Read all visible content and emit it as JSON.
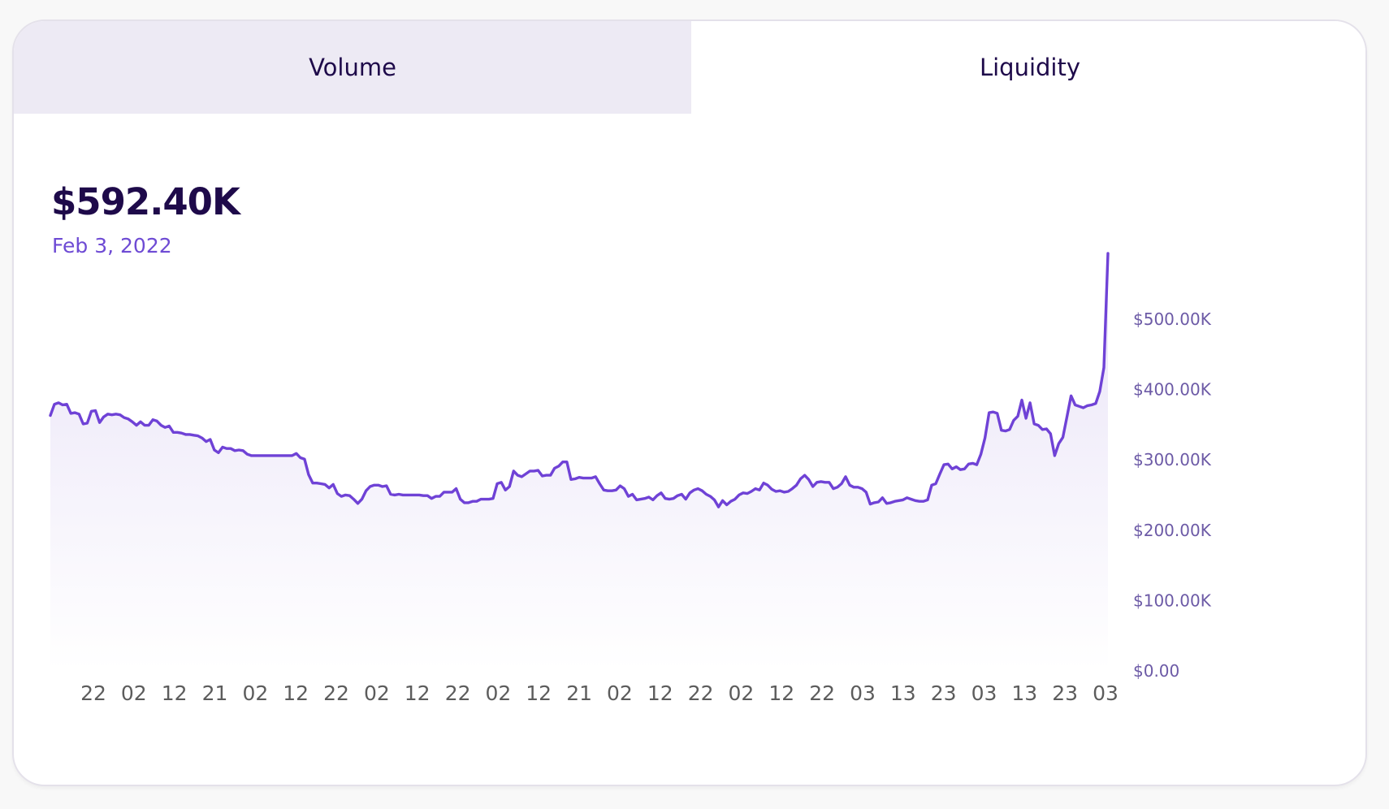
{
  "tabs": [
    {
      "label": "Volume",
      "active": false
    },
    {
      "label": "Liquidity",
      "active": true
    }
  ],
  "header": {
    "value": "$592.40K",
    "date": "Feb 3, 2022"
  },
  "colors": {
    "line": "#6f42d6",
    "fill_top": "#e9e3f7",
    "axis_text_y": "#6c5aa6",
    "axis_text_x": "#5c5c5c",
    "title": "#1e0a4a",
    "tab_inactive_bg": "#edeaf4"
  },
  "chart_data": {
    "type": "area",
    "title": "",
    "xlabel": "",
    "ylabel": "",
    "ylim": [
      0,
      592400
    ],
    "y_ticks": [
      0,
      100000,
      200000,
      300000,
      400000,
      500000
    ],
    "y_tick_labels": [
      "$0.00",
      "$100.00K",
      "$200.00K",
      "$300.00K",
      "$400.00K",
      "$500.00K"
    ],
    "x_tick_labels": [
      "22",
      "02",
      "12",
      "21",
      "02",
      "12",
      "22",
      "02",
      "12",
      "22",
      "02",
      "12",
      "21",
      "02",
      "12",
      "22",
      "02",
      "12",
      "22",
      "03",
      "13",
      "23",
      "03",
      "13",
      "23",
      "03"
    ],
    "grid": false,
    "legend": "none",
    "series": [
      {
        "values": [
          362000,
          378000,
          380000,
          377000,
          378000,
          365000,
          366000,
          364000,
          350000,
          351000,
          368000,
          369000,
          352000,
          360000,
          364000,
          363000,
          364000,
          363000,
          359000,
          357000,
          353000,
          348000,
          353000,
          348000,
          348000,
          356000,
          354000,
          348000,
          345000,
          347000,
          338000,
          338000,
          337000,
          335000,
          335000,
          334000,
          333000,
          330000,
          325000,
          328000,
          313000,
          309000,
          317000,
          315000,
          315000,
          312000,
          313000,
          312000,
          307000,
          305000,
          305000,
          305000,
          305000,
          305000,
          305000,
          305000,
          305000,
          305000,
          305000,
          305000,
          308000,
          302000,
          300000,
          278000,
          266000,
          266000,
          265000,
          264000,
          259000,
          264000,
          251000,
          247000,
          249000,
          248000,
          243000,
          237000,
          243000,
          255000,
          261000,
          263000,
          263000,
          261000,
          262000,
          250000,
          249000,
          250000,
          249000,
          249000,
          249000,
          249000,
          249000,
          248000,
          248000,
          244000,
          247000,
          247000,
          253000,
          253000,
          253000,
          258000,
          243000,
          238000,
          238000,
          240000,
          240000,
          243000,
          243000,
          243000,
          244000,
          265000,
          267000,
          256000,
          261000,
          283000,
          277000,
          275000,
          279000,
          283000,
          283000,
          284000,
          276000,
          277000,
          277000,
          287000,
          290000,
          296000,
          296000,
          271000,
          272000,
          274000,
          273000,
          273000,
          273000,
          275000,
          265000,
          256000,
          255000,
          255000,
          256000,
          262000,
          258000,
          247000,
          250000,
          242000,
          243000,
          244000,
          246000,
          242000,
          248000,
          252000,
          244000,
          243000,
          244000,
          248000,
          250000,
          243000,
          252000,
          256000,
          258000,
          255000,
          250000,
          247000,
          242000,
          232000,
          241000,
          235000,
          240000,
          243000,
          249000,
          252000,
          251000,
          254000,
          258000,
          256000,
          266000,
          263000,
          257000,
          254000,
          255000,
          253000,
          254000,
          258000,
          263000,
          272000,
          277000,
          271000,
          261000,
          267000,
          268000,
          267000,
          267000,
          258000,
          260000,
          265000,
          275000,
          263000,
          260000,
          260000,
          258000,
          253000,
          236000,
          238000,
          239000,
          245000,
          237000,
          238000,
          240000,
          241000,
          242000,
          245000,
          243000,
          241000,
          240000,
          240000,
          242000,
          263000,
          265000,
          279000,
          292000,
          293000,
          286000,
          289000,
          285000,
          286000,
          293000,
          294000,
          292000,
          307000,
          330000,
          366000,
          367000,
          365000,
          341000,
          340000,
          342000,
          355000,
          361000,
          384000,
          358000,
          380000,
          350000,
          348000,
          342000,
          343000,
          336000,
          305000,
          322000,
          331000,
          360000,
          390000,
          377000,
          375000,
          373000,
          376000,
          377000,
          379000,
          396000,
          430000,
          592400
        ]
      }
    ]
  }
}
